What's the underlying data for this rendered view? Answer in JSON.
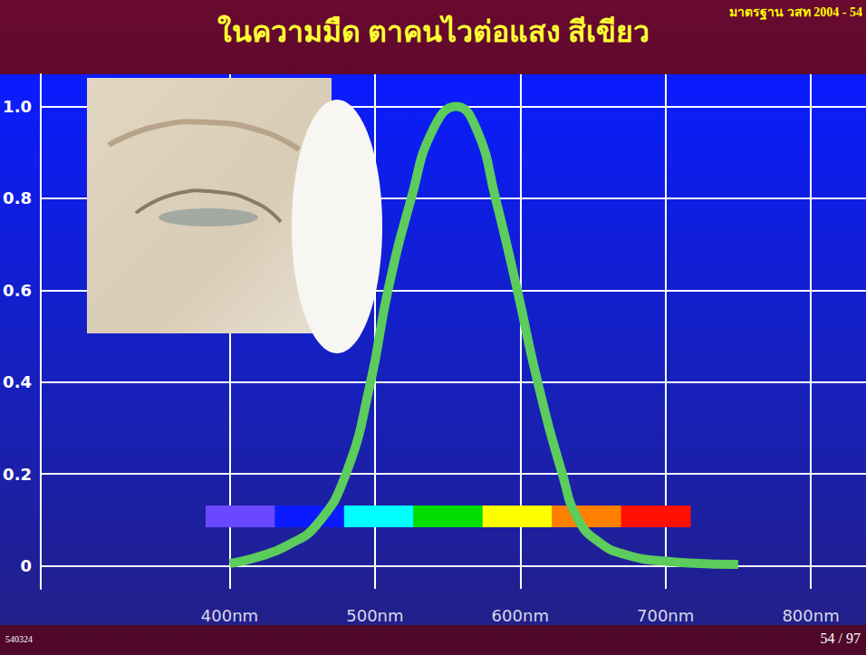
{
  "header_note": "มาตรฐาน วสท 2004 - 54",
  "footer_left": "540324",
  "footer_right": "54 / 97",
  "chart_data": {
    "type": "line",
    "title": "ในความมืด ตาคนไวต่อแสง สีเขียว",
    "x": [
      400,
      420,
      440,
      460,
      480,
      497,
      509,
      525,
      540,
      556,
      570,
      583,
      598,
      612,
      629,
      640,
      655,
      672,
      700,
      750
    ],
    "values": [
      0.005,
      0.02,
      0.045,
      0.09,
      0.2,
      0.4,
      0.6,
      0.8,
      0.95,
      1.0,
      0.95,
      0.8,
      0.6,
      0.4,
      0.2,
      0.1,
      0.05,
      0.025,
      0.01,
      0.003
    ],
    "color": "#5ccc5c",
    "line_style": "solid",
    "marker": "none",
    "xlim": [
      270,
      838
    ],
    "xticks": [
      {
        "value": 400,
        "label": "400nm"
      },
      {
        "value": 500,
        "label": "500nm"
      },
      {
        "value": 600,
        "label": "600nm"
      },
      {
        "value": 700,
        "label": "700nm"
      },
      {
        "value": 800,
        "label": "800nm"
      }
    ],
    "ylim": [
      -0.05,
      1.07
    ],
    "yticks": [
      0,
      0.2,
      0.4,
      0.6,
      0.8,
      {
        "value": 1,
        "label": "1.0"
      }
    ],
    "grid": true
  }
}
